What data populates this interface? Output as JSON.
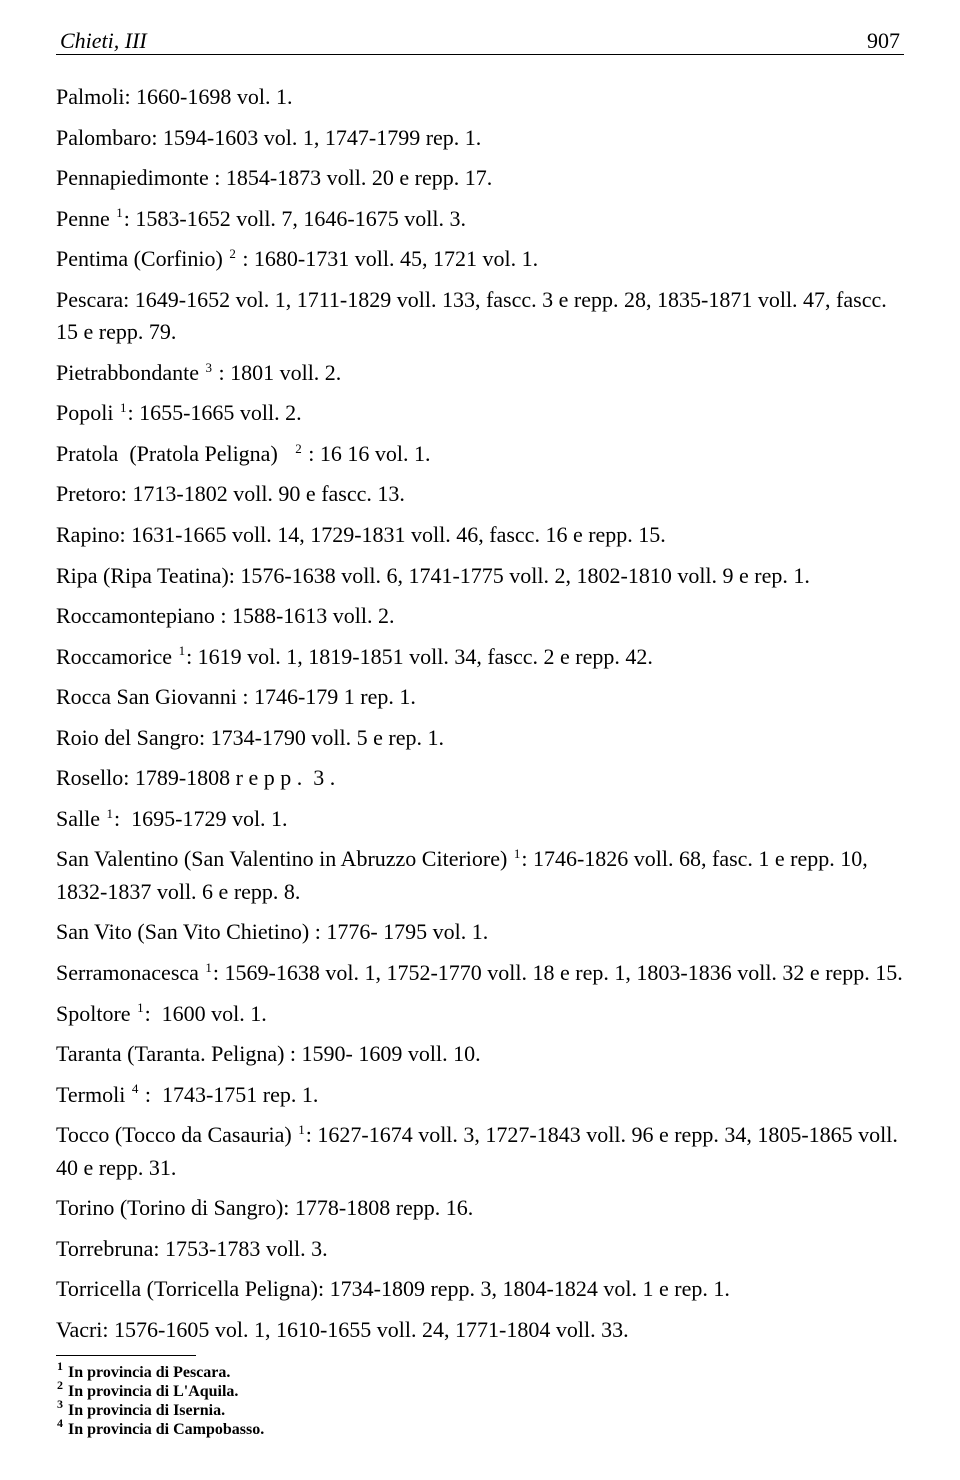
{
  "header": {
    "title": "Chieti, III",
    "page_number": "907"
  },
  "entries": [
    {
      "html": "Palmoli: 1660-1698 vol. 1."
    },
    {
      "html": "Palombaro: 1594-1603 vol. 1, 1747-1799 rep. 1."
    },
    {
      "html": "Pennapiedimonte : 1854-1873 voll. 20 e repp. 17."
    },
    {
      "html": "Penne <sup>1</sup>: 1583-1652 voll. 7, 1646-1675 voll. 3."
    },
    {
      "html": "Pentima (Corfinio) <sup>2</sup> : 1680-1731 voll. 45, 1721 vol. 1."
    },
    {
      "html": "Pescara: 1649-1652 vol. 1, 1711-1829 voll. 133, fascc. 3 e repp. 28, 1835-1871 voll. 47, fascc. 15 e repp. 79."
    },
    {
      "html": "Pietrabbondante <sup>3</sup> : 1801 voll. 2."
    },
    {
      "html": "Popoli <sup>1</sup>: 1655-1665 voll. 2."
    },
    {
      "html": "Pratola &nbsp;(Pratola Peligna) &nbsp;&nbsp;<sup>2</sup> : 16 16 vol. 1."
    },
    {
      "html": "Pretoro: 1713-1802 voll. 90 e fascc. 13."
    },
    {
      "html": "Rapino: 1631-1665 voll. 14, 1729-1831 voll. 46, fascc. 16 e repp. 15."
    },
    {
      "html": "Ripa (Ripa Teatina): 1576-1638 voll. 6, 1741-1775 voll. 2, 1802-1810 voll. 9 e rep. 1."
    },
    {
      "html": "Roccamontepiano : 1588-1613 voll. 2."
    },
    {
      "html": "Roccamorice <sup>1</sup>: 1619 vol. 1, 1819-1851 voll. 34, fascc. 2 e repp. 42."
    },
    {
      "html": "Rocca San Giovanni : 1746-179 1 rep. 1."
    },
    {
      "html": "Roio del Sangro: 1734-1790 voll. 5 e rep. 1."
    },
    {
      "html": "Rosello: 1789-1808 r e p p . &nbsp;3 ."
    },
    {
      "html": "Salle <sup>1</sup>: &nbsp;1695-1729 vol. 1."
    },
    {
      "html": "San Valentino (San Valentino in Abruzzo Citeriore) <sup>1</sup>: 1746-1826 voll. 68, fasc. 1 e repp. 10, 1832-1837 voll. 6 e repp. 8."
    },
    {
      "html": "San Vito (San Vito Chietino) : 1776- 1795 vol. 1."
    },
    {
      "html": "Serramonacesca <sup>1</sup>: 1569-1638 vol. 1, 1752-1770 voll. 18 e rep. 1, 1803-1836 voll. 32 e repp. 15."
    },
    {
      "html": "Spoltore <sup>1</sup>: &nbsp;1600 vol. 1."
    },
    {
      "html": "Taranta (Taranta. Peligna) : 1590- 1609 voll. 10."
    },
    {
      "html": "Termoli <sup>4</sup> : &nbsp;1743-1751 rep. 1."
    },
    {
      "html": "Tocco (Tocco da Casauria) <sup>1</sup>: 1627-1674 voll. 3, 1727-1843 voll. 96 e repp. 34, 1805-1865 voll. 40 e repp. 31."
    },
    {
      "html": "Torino (Torino di Sangro): 1778-1808 repp. 16."
    },
    {
      "html": "Torrebruna: 1753-1783 voll. 3."
    },
    {
      "html": "Torricella (Torricella Peligna): 1734-1809 repp. 3, 1804-1824 vol. 1 e rep. 1."
    },
    {
      "html": "Vacri: 1576-1605 vol. 1, 1610-1655 voll. 24, 1771-1804 voll. 33."
    }
  ],
  "footnotes": [
    {
      "num": "1",
      "text": "In provincia di Pescara."
    },
    {
      "num": "2",
      "text": "In provincia di L'Aquila."
    },
    {
      "num": "3",
      "text": "In provincia di Isernia."
    },
    {
      "num": "4",
      "text": "In provincia di Campobasso."
    }
  ]
}
